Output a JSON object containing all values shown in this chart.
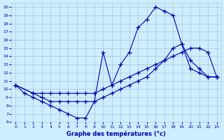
{
  "title": "Graphe des températures (°c)",
  "bg_color": "#cceeff",
  "grid_color": "#aaccdd",
  "line_color": "#0000aa",
  "marker": "+",
  "markersize": 4,
  "linewidth": 0.8,
  "xlim": [
    -0.5,
    23.5
  ],
  "ylim": [
    6,
    20.5
  ],
  "xticks": [
    0,
    1,
    2,
    3,
    4,
    5,
    6,
    7,
    8,
    9,
    10,
    11,
    12,
    13,
    14,
    15,
    16,
    17,
    18,
    19,
    20,
    21,
    22,
    23
  ],
  "yticks": [
    6,
    7,
    8,
    9,
    10,
    11,
    12,
    13,
    14,
    15,
    16,
    17,
    18,
    19,
    20
  ],
  "curve1_x": [
    0,
    1,
    2,
    3,
    4,
    5,
    6,
    7,
    8,
    9,
    10,
    11,
    12,
    13,
    14,
    15,
    16,
    17,
    18,
    19,
    20,
    21,
    22,
    23
  ],
  "curve1_y": [
    10.5,
    9.5,
    9.0,
    8.5,
    8.0,
    7.5,
    7.0,
    6.5,
    6.5,
    8.5,
    14.5,
    10.5,
    13.0,
    14.5,
    17.5,
    18.5,
    20.0,
    19.5,
    19.0,
    15.5,
    12.5,
    12.0,
    11.5,
    11.5
  ],
  "curve2_x": [
    0,
    2,
    3,
    4,
    5,
    6,
    7,
    8,
    9,
    10,
    11,
    12,
    13,
    14,
    15,
    16,
    17,
    18,
    19,
    20,
    21,
    22,
    23
  ],
  "curve2_y": [
    10.5,
    9.5,
    9.5,
    9.5,
    9.5,
    9.5,
    9.5,
    9.5,
    9.5,
    10.0,
    10.5,
    11.0,
    11.5,
    12.0,
    12.5,
    13.0,
    13.5,
    14.0,
    14.5,
    15.0,
    15.0,
    14.5,
    11.5
  ],
  "curve3_x": [
    0,
    2,
    3,
    4,
    5,
    6,
    7,
    8,
    9,
    10,
    11,
    12,
    13,
    14,
    15,
    16,
    17,
    18,
    19,
    20,
    21,
    22,
    23
  ],
  "curve3_y": [
    10.5,
    9.5,
    9.0,
    8.5,
    8.5,
    8.5,
    8.5,
    8.5,
    8.5,
    9.0,
    9.5,
    10.0,
    10.5,
    11.0,
    11.5,
    12.5,
    13.5,
    15.0,
    15.5,
    13.5,
    12.5,
    11.5,
    11.5
  ]
}
